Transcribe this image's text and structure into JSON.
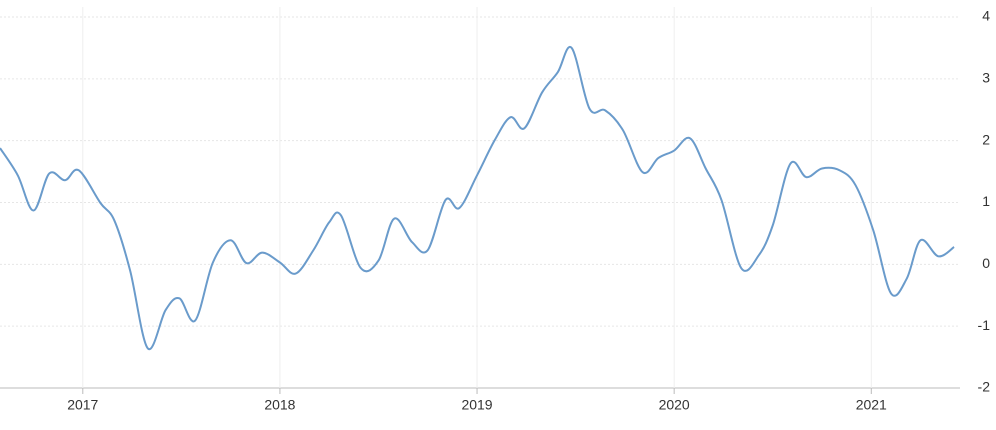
{
  "chart_data": {
    "type": "line",
    "x": [
      2016.58,
      2016.67,
      2016.75,
      2016.83,
      2016.91,
      2016.98,
      2017.09,
      2017.16,
      2017.24,
      2017.33,
      2017.42,
      2017.49,
      2017.57,
      2017.66,
      2017.75,
      2017.83,
      2017.91,
      2018.0,
      2018.08,
      2018.17,
      2018.25,
      2018.31,
      2018.41,
      2018.5,
      2018.58,
      2018.67,
      2018.75,
      2018.84,
      2018.91,
      2019.0,
      2019.09,
      2019.17,
      2019.24,
      2019.33,
      2019.41,
      2019.48,
      2019.57,
      2019.65,
      2019.74,
      2019.84,
      2019.92,
      2020.0,
      2020.08,
      2020.16,
      2020.24,
      2020.34,
      2020.43,
      2020.5,
      2020.59,
      2020.67,
      2020.75,
      2020.84,
      2020.92,
      2021.01,
      2021.1,
      2021.18,
      2021.25,
      2021.34,
      2021.42
    ],
    "series": [
      {
        "color": "#6a9bcb",
        "values": [
          1.88,
          1.44,
          0.87,
          1.47,
          1.36,
          1.52,
          0.99,
          0.71,
          -0.1,
          -1.36,
          -0.74,
          -0.55,
          -0.91,
          0.03,
          0.39,
          0.02,
          0.19,
          0.03,
          -0.15,
          0.23,
          0.68,
          0.79,
          -0.06,
          0.06,
          0.74,
          0.36,
          0.23,
          1.04,
          0.91,
          1.44,
          2.01,
          2.38,
          2.2,
          2.78,
          3.11,
          3.5,
          2.52,
          2.49,
          2.17,
          1.49,
          1.72,
          1.84,
          2.04,
          1.55,
          1.04,
          -0.06,
          0.15,
          0.63,
          1.63,
          1.41,
          1.55,
          1.52,
          1.28,
          0.55,
          -0.47,
          -0.23,
          0.39,
          0.13,
          0.28
        ]
      }
    ],
    "xlim": [
      2016.58,
      2021.45
    ],
    "xticks": [
      2017,
      2018,
      2019,
      2020,
      2021
    ],
    "ylim": [
      -2,
      4
    ],
    "yticks": [
      -2,
      -1,
      0,
      1,
      2,
      3,
      4
    ],
    "grid": true
  }
}
